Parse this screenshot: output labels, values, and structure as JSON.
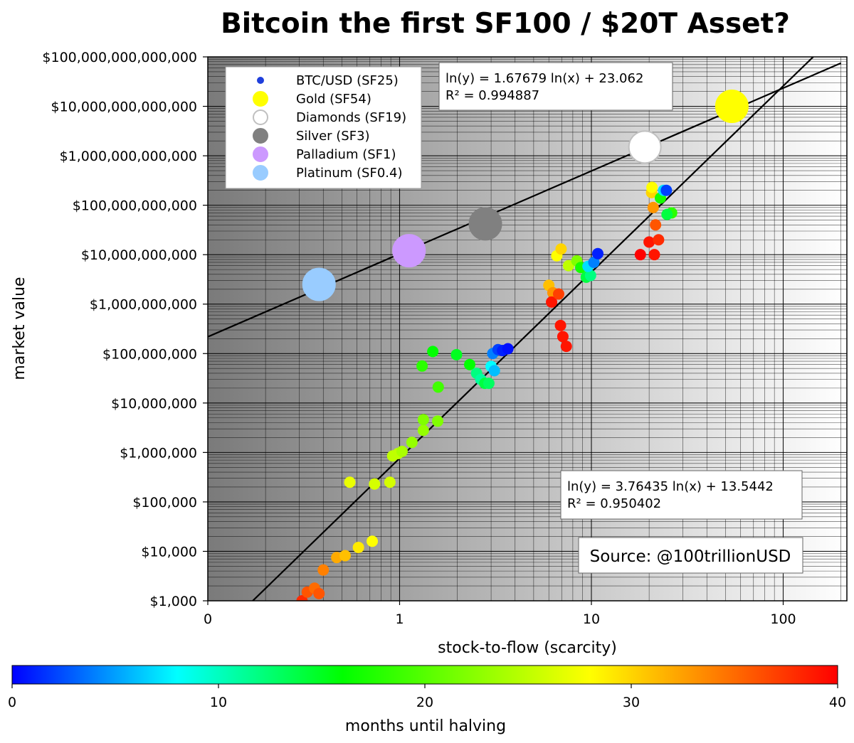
{
  "chart_data": {
    "type": "scatter",
    "title": "Bitcoin the first SF100 / $20T Asset?",
    "xlabel": "stock-to-flow (scarcity)",
    "ylabel": "market value",
    "x_scale": "log",
    "y_scale": "log",
    "xlim": [
      0.1,
      200
    ],
    "ylim": [
      1000,
      100000000000000
    ],
    "x_tick_labels": [
      {
        "value": 0.1,
        "label": "0"
      },
      {
        "value": 1,
        "label": "1"
      },
      {
        "value": 10,
        "label": "10"
      },
      {
        "value": 100,
        "label": "100"
      }
    ],
    "y_tick_labels": [
      {
        "value": 1000,
        "label": "$1,000"
      },
      {
        "value": 10000,
        "label": "$10,000"
      },
      {
        "value": 100000,
        "label": "$100,000"
      },
      {
        "value": 1000000,
        "label": "$1,000,000"
      },
      {
        "value": 10000000,
        "label": "$10,000,000"
      },
      {
        "value": 100000000,
        "label": "$100,000,000"
      },
      {
        "value": 1000000000,
        "label": "$1,000,000,000"
      },
      {
        "value": 10000000000,
        "label": "$10,000,000,000"
      },
      {
        "value": 100000000000,
        "label": "$100,000,000,000"
      },
      {
        "value": 1000000000000,
        "label": "$1,000,000,000,000"
      },
      {
        "value": 10000000000000,
        "label": "$10,000,000,000,000"
      },
      {
        "value": 100000000000000,
        "label": "$100,000,000,000,000"
      }
    ],
    "grid": true,
    "legend_position": "top-left",
    "legend": [
      {
        "label": "BTC/USD (SF25)",
        "color": "#1f3fdc",
        "edge": "#1f3fdc",
        "size": "small"
      },
      {
        "label": "Gold (SF54)",
        "color": "#ffff00",
        "edge": "#ffff00",
        "size": "large"
      },
      {
        "label": "Diamonds (SF19)",
        "color": "#ffffff",
        "edge": "#c0c0c0",
        "size": "large"
      },
      {
        "label": "Silver (SF3)",
        "color": "#808080",
        "edge": "#808080",
        "size": "large"
      },
      {
        "label": "Palladium (SF1)",
        "color": "#cc99ff",
        "edge": "#cc99ff",
        "size": "large"
      },
      {
        "label": "Platinum (SF0.4)",
        "color": "#99ccff",
        "edge": "#99ccff",
        "size": "large"
      }
    ],
    "assets": [
      {
        "name": "Gold",
        "sf": 54,
        "value": 10000000000000,
        "color": "#ffff00",
        "edge": "#ffff00"
      },
      {
        "name": "Diamonds",
        "sf": 19,
        "value": 1500000000000,
        "color": "#ffffff",
        "edge": "#c0c0c0"
      },
      {
        "name": "Silver",
        "sf": 2.8,
        "value": 42000000000,
        "color": "#808080",
        "edge": "#808080"
      },
      {
        "name": "Palladium",
        "sf": 1.12,
        "value": 12000000000,
        "color": "#cc99ff",
        "edge": "#cc99ff"
      },
      {
        "name": "Platinum",
        "sf": 0.38,
        "value": 2500000000,
        "color": "#99ccff",
        "edge": "#99ccff"
      }
    ],
    "fits": [
      {
        "equation": "ln(y) = 1.67679 ln(x) + 23.062",
        "r2": "R² = 0.994887",
        "a": 1.67679,
        "b": 23.062
      },
      {
        "equation": "ln(y) = 3.76435 ln(x) + 13.5442",
        "r2": "R² = 0.950402",
        "a": 3.76435,
        "b": 13.5442
      }
    ],
    "btc_points": [
      {
        "sf": 0.31,
        "value": 1000,
        "months": 38
      },
      {
        "sf": 0.33,
        "value": 1500,
        "months": 36
      },
      {
        "sf": 0.36,
        "value": 1800,
        "months": 35
      },
      {
        "sf": 0.38,
        "value": 1400,
        "months": 36
      },
      {
        "sf": 0.4,
        "value": 4200,
        "months": 34
      },
      {
        "sf": 0.47,
        "value": 7500,
        "months": 32
      },
      {
        "sf": 0.52,
        "value": 8200,
        "months": 31
      },
      {
        "sf": 0.61,
        "value": 12000,
        "months": 29
      },
      {
        "sf": 0.72,
        "value": 16000,
        "months": 28
      },
      {
        "sf": 0.55,
        "value": 250000,
        "months": 27
      },
      {
        "sf": 0.74,
        "value": 230000,
        "months": 26
      },
      {
        "sf": 0.89,
        "value": 250000,
        "months": 26
      },
      {
        "sf": 0.92,
        "value": 850000,
        "months": 25
      },
      {
        "sf": 0.98,
        "value": 950000,
        "months": 25
      },
      {
        "sf": 1.03,
        "value": 1050000,
        "months": 24
      },
      {
        "sf": 1.16,
        "value": 1600000,
        "months": 23
      },
      {
        "sf": 1.33,
        "value": 2800000,
        "months": 23
      },
      {
        "sf": 1.33,
        "value": 4600000,
        "months": 22
      },
      {
        "sf": 1.58,
        "value": 4300000,
        "months": 22
      },
      {
        "sf": 1.59,
        "value": 21000000,
        "months": 19
      },
      {
        "sf": 1.31,
        "value": 56000000,
        "months": 18
      },
      {
        "sf": 1.49,
        "value": 110000000,
        "months": 16
      },
      {
        "sf": 1.98,
        "value": 95000000,
        "months": 15
      },
      {
        "sf": 2.32,
        "value": 60000000,
        "months": 16
      },
      {
        "sf": 2.52,
        "value": 40000000,
        "months": 12
      },
      {
        "sf": 2.65,
        "value": 30000000,
        "months": 11
      },
      {
        "sf": 2.78,
        "value": 25000000,
        "months": 14
      },
      {
        "sf": 2.92,
        "value": 25000000,
        "months": 13
      },
      {
        "sf": 3.0,
        "value": 55000000,
        "months": 8
      },
      {
        "sf": 3.12,
        "value": 45000000,
        "months": 6
      },
      {
        "sf": 3.06,
        "value": 100000000,
        "months": 4
      },
      {
        "sf": 3.26,
        "value": 120000000,
        "months": 2
      },
      {
        "sf": 3.44,
        "value": 115000000,
        "months": 1
      },
      {
        "sf": 3.67,
        "value": 125000000,
        "months": 0.5
      },
      {
        "sf": 6.0,
        "value": 2400000000,
        "months": 31
      },
      {
        "sf": 6.3,
        "value": 1700000000,
        "months": 33
      },
      {
        "sf": 6.2,
        "value": 1100000000,
        "months": 39
      },
      {
        "sf": 6.75,
        "value": 1600000000,
        "months": 37
      },
      {
        "sf": 6.9,
        "value": 370000000,
        "months": 39
      },
      {
        "sf": 7.1,
        "value": 220000000,
        "months": 39
      },
      {
        "sf": 7.4,
        "value": 140000000,
        "months": 39
      },
      {
        "sf": 6.6,
        "value": 9500000000,
        "months": 28
      },
      {
        "sf": 6.95,
        "value": 13000000000,
        "months": 30
      },
      {
        "sf": 7.6,
        "value": 6000000000,
        "months": 25
      },
      {
        "sf": 8.4,
        "value": 7500000000,
        "months": 22
      },
      {
        "sf": 8.8,
        "value": 5500000000,
        "months": 17
      },
      {
        "sf": 9.4,
        "value": 3500000000,
        "months": 14
      },
      {
        "sf": 9.9,
        "value": 3800000000,
        "months": 12
      },
      {
        "sf": 9.6,
        "value": 5800000000,
        "months": 7
      },
      {
        "sf": 10.3,
        "value": 7000000000,
        "months": 4
      },
      {
        "sf": 10.8,
        "value": 10500000000,
        "months": 1
      },
      {
        "sf": 20.0,
        "value": 18000000000,
        "months": 39
      },
      {
        "sf": 18.0,
        "value": 10000000000,
        "months": 40
      },
      {
        "sf": 21.3,
        "value": 10000000000,
        "months": 39
      },
      {
        "sf": 22.4,
        "value": 20000000000,
        "months": 38
      },
      {
        "sf": 21.6,
        "value": 40000000000,
        "months": 36
      },
      {
        "sf": 21.0,
        "value": 90000000000,
        "months": 33
      },
      {
        "sf": 20.6,
        "value": 180000000000,
        "months": 30
      },
      {
        "sf": 20.7,
        "value": 230000000000,
        "months": 28
      },
      {
        "sf": 22.9,
        "value": 140000000000,
        "months": 17
      },
      {
        "sf": 23.8,
        "value": 200000000000,
        "months": 7
      },
      {
        "sf": 24.6,
        "value": 200000000000,
        "months": 2
      },
      {
        "sf": 26.2,
        "value": 70000000000,
        "months": 18
      },
      {
        "sf": 24.8,
        "value": 65000000000,
        "months": 14
      }
    ],
    "colorbar": {
      "label": "months until halving",
      "min": 0,
      "max": 40,
      "ticks": [
        0,
        10,
        20,
        30,
        40
      ],
      "stops": [
        "#0000ff",
        "#00ffff",
        "#00ff00",
        "#ffff00",
        "#ff8000",
        "#ff0000"
      ]
    },
    "source": "Source: @100trillionUSD"
  }
}
